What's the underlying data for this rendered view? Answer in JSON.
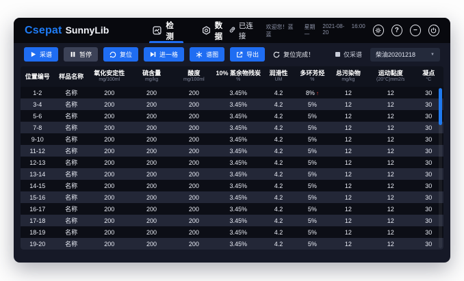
{
  "colors": {
    "accent": "#1f6df2",
    "logo_blue": "#1f7cf6",
    "header_bg": "#08090e",
    "body_bg": "#161927",
    "button_secondary": "#3c4257",
    "row_dark": "#0c0e16",
    "row_light": "#232737",
    "alert_red": "#f03a34",
    "scrollbar_blue": "#1f7af0"
  },
  "titlebar": {
    "logo_primary": "Csepat",
    "logo_secondary": "SunnyLib",
    "tabs": [
      {
        "label": "检测",
        "icon": "detect-icon",
        "active": true
      },
      {
        "label": "数据",
        "icon": "data-icon",
        "active": false
      }
    ],
    "connection_status": "已连接",
    "greeting": "欢迎您！蓝蓝",
    "weekday": "星期一",
    "date": "2021-08-20",
    "time": "16:00",
    "help_label": "?",
    "minimize_label": "−"
  },
  "toolbar": {
    "buttons": [
      {
        "name": "collect-spectrum",
        "label": "采谱",
        "icon": "play-icon",
        "style": "primary"
      },
      {
        "name": "pause",
        "label": "暂停",
        "icon": "pause-icon",
        "style": "secondary"
      },
      {
        "name": "reset",
        "label": "复位",
        "icon": "reset-icon",
        "style": "primary"
      },
      {
        "name": "step-forward",
        "label": "进一格",
        "icon": "step-forward-icon",
        "style": "primary"
      },
      {
        "name": "spectrum-view",
        "label": "谱图",
        "icon": "spectrum-icon",
        "style": "primary"
      },
      {
        "name": "export",
        "label": "导出",
        "icon": "export-icon",
        "style": "primary"
      }
    ],
    "status_text": "复位完成！",
    "checkbox_label": "仅采谱",
    "dropdown_value": "柴油20201218"
  },
  "table": {
    "columns": [
      {
        "label": "位置编号",
        "unit": ""
      },
      {
        "label": "样品名称",
        "unit": ""
      },
      {
        "label": "氧化安定性",
        "unit": "mg/100ml"
      },
      {
        "label": "硫含量",
        "unit": "mg/kg"
      },
      {
        "label": "酸度",
        "unit": "mg/100ml"
      },
      {
        "label": "10% 蒸余物残炭",
        "unit": "%"
      },
      {
        "label": "润滑性",
        "unit": "UM"
      },
      {
        "label": "多环芳烃",
        "unit": "%"
      },
      {
        "label": "总污染物",
        "unit": "mg/kg"
      },
      {
        "label": "运动黏度",
        "unit": "(20°C)mm2/s"
      },
      {
        "label": "凝点",
        "unit": "°C"
      }
    ],
    "rows": [
      {
        "position": "1-2",
        "cells": [
          "名称",
          "200",
          "200",
          "200",
          "3.45%",
          "4.2",
          "8%",
          "12",
          "12",
          "30"
        ],
        "alert": true
      },
      {
        "position": "3-4",
        "cells": [
          "名称",
          "200",
          "200",
          "200",
          "3.45%",
          "4.2",
          "5%",
          "12",
          "12",
          "30"
        ],
        "alert": false
      },
      {
        "position": "5-6",
        "cells": [
          "名称",
          "200",
          "200",
          "200",
          "3.45%",
          "4.2",
          "5%",
          "12",
          "12",
          "30"
        ],
        "alert": false
      },
      {
        "position": "7-8",
        "cells": [
          "名称",
          "200",
          "200",
          "200",
          "3.45%",
          "4.2",
          "5%",
          "12",
          "12",
          "30"
        ],
        "alert": false
      },
      {
        "position": "9-10",
        "cells": [
          "名称",
          "200",
          "200",
          "200",
          "3.45%",
          "4.2",
          "5%",
          "12",
          "12",
          "30"
        ],
        "alert": false
      },
      {
        "position": "11-12",
        "cells": [
          "名称",
          "200",
          "200",
          "200",
          "3.45%",
          "4.2",
          "5%",
          "12",
          "12",
          "30"
        ],
        "alert": false
      },
      {
        "position": "12-13",
        "cells": [
          "名称",
          "200",
          "200",
          "200",
          "3.45%",
          "4.2",
          "5%",
          "12",
          "12",
          "30"
        ],
        "alert": false
      },
      {
        "position": "13-14",
        "cells": [
          "名称",
          "200",
          "200",
          "200",
          "3.45%",
          "4.2",
          "5%",
          "12",
          "12",
          "30"
        ],
        "alert": false
      },
      {
        "position": "14-15",
        "cells": [
          "名称",
          "200",
          "200",
          "200",
          "3.45%",
          "4.2",
          "5%",
          "12",
          "12",
          "30"
        ],
        "alert": false
      },
      {
        "position": "15-16",
        "cells": [
          "名称",
          "200",
          "200",
          "200",
          "3.45%",
          "4.2",
          "5%",
          "12",
          "12",
          "30"
        ],
        "alert": false
      },
      {
        "position": "16-17",
        "cells": [
          "名称",
          "200",
          "200",
          "200",
          "3.45%",
          "4.2",
          "5%",
          "12",
          "12",
          "30"
        ],
        "alert": false
      },
      {
        "position": "17-18",
        "cells": [
          "名称",
          "200",
          "200",
          "200",
          "3.45%",
          "4.2",
          "5%",
          "12",
          "12",
          "30"
        ],
        "alert": false
      },
      {
        "position": "18-19",
        "cells": [
          "名称",
          "200",
          "200",
          "200",
          "3.45%",
          "4.2",
          "5%",
          "12",
          "12",
          "30"
        ],
        "alert": false
      },
      {
        "position": "19-20",
        "cells": [
          "名称",
          "200",
          "200",
          "200",
          "3.45%",
          "4.2",
          "5%",
          "12",
          "12",
          "30"
        ],
        "alert": false
      }
    ]
  }
}
